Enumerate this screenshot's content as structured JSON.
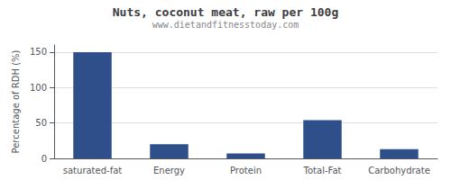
{
  "chart_data": {
    "type": "bar",
    "title": "Nuts, coconut meat, raw per 100g",
    "subtitle": "www.dietandfitnesstoday.com",
    "categories": [
      "saturated-fat",
      "Energy",
      "Protein",
      "Total-Fat",
      "Carbohydrate"
    ],
    "values": [
      150,
      20,
      7,
      54,
      13
    ],
    "color": "#2e4f8a",
    "ylabel": "Percentage of RDH (%)",
    "ylim": [
      0,
      160
    ],
    "yticks": [
      0,
      50,
      100,
      150
    ],
    "grid": true
  }
}
